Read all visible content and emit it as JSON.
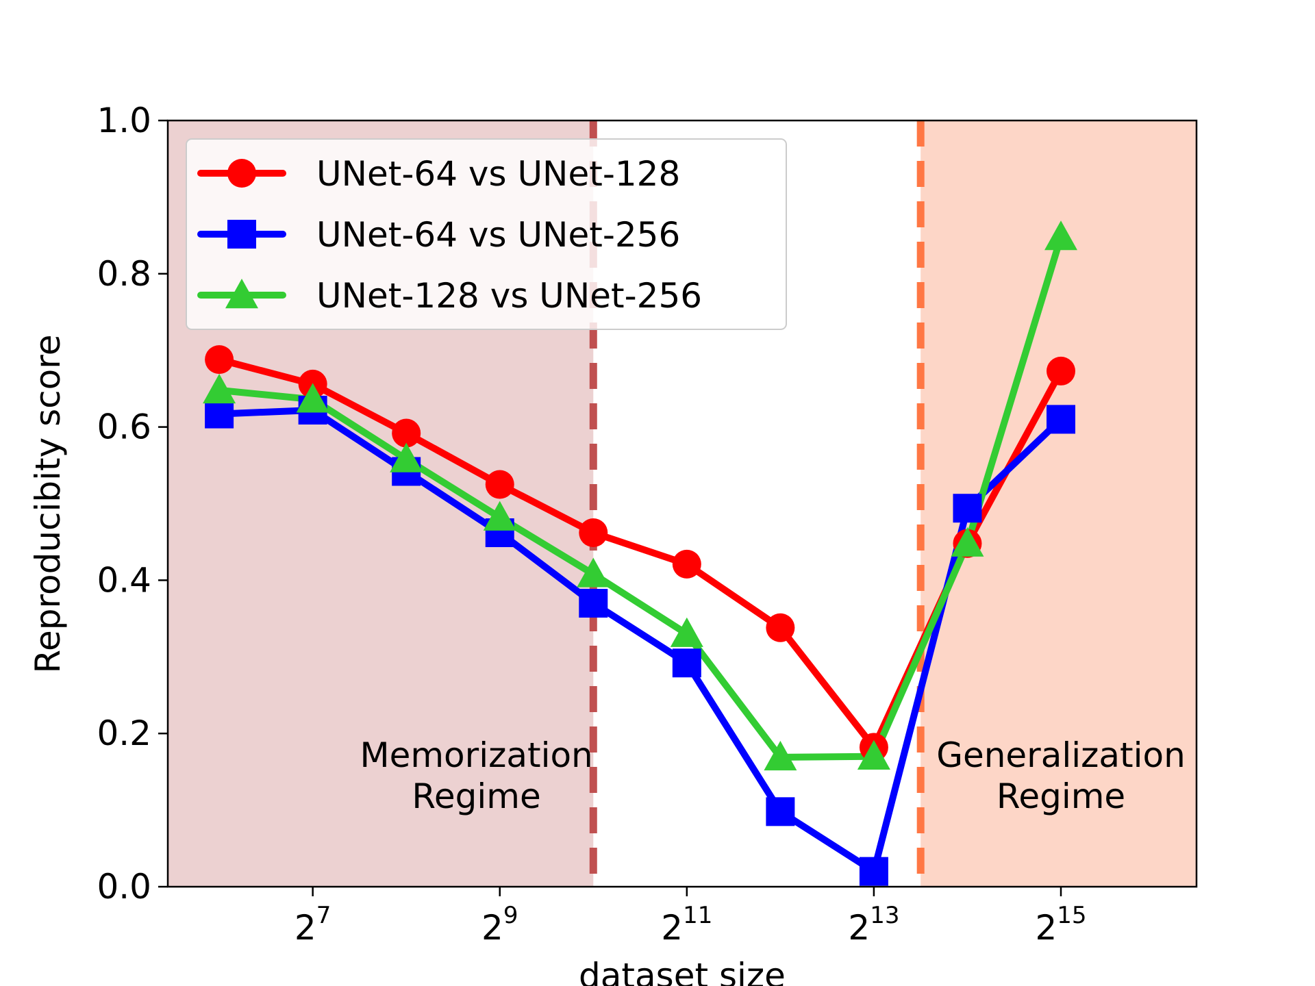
{
  "chart_data": {
    "type": "line",
    "title": "",
    "xlabel": "dataset size",
    "ylabel": "Reproducibity score",
    "x_scale": "log2",
    "x": [
      6,
      7,
      8,
      9,
      10,
      11,
      12,
      13,
      14,
      15
    ],
    "xlim": [
      5.45,
      16.45
    ],
    "ylim": [
      0,
      1
    ],
    "x_ticks": [
      {
        "exp": 7,
        "base": "2",
        "sup": "7"
      },
      {
        "exp": 9,
        "base": "2",
        "sup": "9"
      },
      {
        "exp": 11,
        "base": "2",
        "sup": "11"
      },
      {
        "exp": 13,
        "base": "2",
        "sup": "13"
      },
      {
        "exp": 15,
        "base": "2",
        "sup": "15"
      }
    ],
    "y_ticks": [
      {
        "value": 0.0,
        "label": "0.0"
      },
      {
        "value": 0.2,
        "label": "0.2"
      },
      {
        "value": 0.4,
        "label": "0.4"
      },
      {
        "value": 0.6,
        "label": "0.6"
      },
      {
        "value": 0.8,
        "label": "0.8"
      },
      {
        "value": 1.0,
        "label": "1.0"
      }
    ],
    "grid": false,
    "legend_position": "top-left",
    "series": [
      {
        "name": "UNet-64 vs UNet-128",
        "color": "#ff0000",
        "marker": "circle",
        "values": [
          0.688,
          0.656,
          0.592,
          0.525,
          0.462,
          0.421,
          0.338,
          0.182,
          0.448,
          0.673
        ]
      },
      {
        "name": "UNet-64 vs UNet-256",
        "color": "#0000ff",
        "marker": "square",
        "values": [
          0.617,
          0.622,
          0.542,
          0.462,
          0.37,
          0.292,
          0.098,
          0.02,
          0.494,
          0.61
        ]
      },
      {
        "name": "UNet-128 vs UNet-256",
        "color": "#33cc33",
        "marker": "triangle",
        "values": [
          0.648,
          0.636,
          0.558,
          0.482,
          0.408,
          0.33,
          0.169,
          0.17,
          0.448,
          0.848
        ]
      }
    ],
    "regions": [
      {
        "name": "memorization",
        "x_from": 5.45,
        "x_to": 10,
        "color": "#bc5a5a",
        "opacity": 0.28,
        "boundary_color": "#c05050",
        "label_lines": [
          "Memorization",
          "Regime"
        ]
      },
      {
        "name": "generalization",
        "x_from": 13.5,
        "x_to": 16.45,
        "color": "#fa8c64",
        "opacity": 0.36,
        "boundary_color": "#ff7744",
        "label_lines": [
          "Generalization",
          "Regime"
        ]
      }
    ]
  }
}
